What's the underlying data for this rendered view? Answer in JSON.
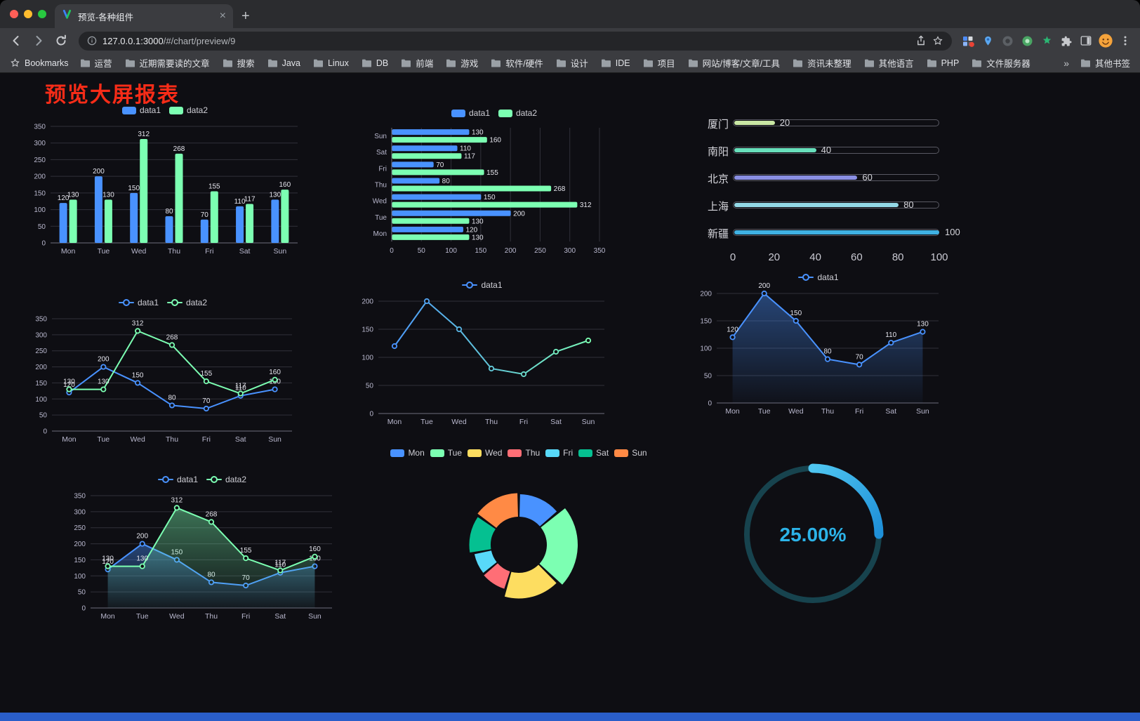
{
  "browser": {
    "tab_title": "预览-各种组件",
    "url_host": "127.0.0.1:3000",
    "url_path": "/#/chart/preview/9",
    "bookmarks_label": "Bookmarks",
    "bookmarks": [
      "运营",
      "近期需要读的文章",
      "搜索",
      "Java",
      "Linux",
      "DB",
      "前端",
      "游戏",
      "软件/硬件",
      "设计",
      "IDE",
      "项目",
      "网站/博客/文章/工具",
      "资讯未整理",
      "其他语言",
      "PHP",
      "文件服务器"
    ],
    "bookmarks_overflow": "»",
    "other_bookmarks": "其他书签"
  },
  "page": {
    "title": "预览大屏报表",
    "title_color": "#f72c18",
    "background": "#0e0e13",
    "footer_color": "#2a5ec9"
  },
  "chart_data": [
    {
      "type": "bar",
      "categories": [
        "Mon",
        "Tue",
        "Wed",
        "Thu",
        "Fri",
        "Sat",
        "Sun"
      ],
      "series": [
        {
          "name": "data1",
          "color": "#4992ff",
          "values": [
            120,
            200,
            150,
            80,
            70,
            110,
            130
          ]
        },
        {
          "name": "data2",
          "color": "#7cffb2",
          "values": [
            130,
            130,
            312,
            268,
            155,
            117,
            160
          ]
        }
      ],
      "ylim": [
        0,
        350
      ],
      "ytick": 50,
      "labels": true
    },
    {
      "type": "hbar",
      "categories": [
        "Mon",
        "Tue",
        "Wed",
        "Thu",
        "Fri",
        "Sat",
        "Sun"
      ],
      "series": [
        {
          "name": "data1",
          "color": "#4992ff",
          "values": [
            120,
            200,
            150,
            80,
            70,
            110,
            130
          ]
        },
        {
          "name": "data2",
          "color": "#7cffb2",
          "values": [
            130,
            130,
            312,
            268,
            155,
            117,
            160
          ]
        }
      ],
      "xlim": [
        0,
        350
      ],
      "xtick": 50,
      "labels": true
    },
    {
      "type": "progress",
      "items": [
        {
          "label": "厦门",
          "value": 20,
          "color": "#c9e7a4"
        },
        {
          "label": "南阳",
          "value": 40,
          "color": "#68e0bc"
        },
        {
          "label": "北京",
          "value": 60,
          "color": "#8a8fe3"
        },
        {
          "label": "上海",
          "value": 80,
          "color": "#93d8e6"
        },
        {
          "label": "新疆",
          "value": 100,
          "color": "#3fb1e3"
        }
      ],
      "ticks": [
        0,
        20,
        40,
        60,
        80,
        100
      ],
      "max": 100
    },
    {
      "type": "line",
      "categories": [
        "Mon",
        "Tue",
        "Wed",
        "Thu",
        "Fri",
        "Sat",
        "Sun"
      ],
      "series": [
        {
          "name": "data1",
          "color": "#4992ff",
          "values": [
            120,
            200,
            150,
            80,
            70,
            110,
            130
          ]
        },
        {
          "name": "data2",
          "color": "#7cffb2",
          "values": [
            130,
            130,
            312,
            268,
            155,
            117,
            160
          ]
        }
      ],
      "ylim": [
        0,
        350
      ],
      "ytick": 50,
      "labels": true
    },
    {
      "type": "line",
      "categories": [
        "Mon",
        "Tue",
        "Wed",
        "Thu",
        "Fri",
        "Sat",
        "Sun"
      ],
      "series": [
        {
          "name": "data1",
          "gradient": [
            "#4992ff",
            "#7cffb2"
          ],
          "values": [
            120,
            200,
            150,
            80,
            70,
            110,
            130
          ]
        }
      ],
      "ylim": [
        0,
        200
      ],
      "ytick": 50,
      "labels": false
    },
    {
      "type": "line",
      "categories": [
        "Mon",
        "Tue",
        "Wed",
        "Thu",
        "Fri",
        "Sat",
        "Sun"
      ],
      "series": [
        {
          "name": "data1",
          "color": "#4992ff",
          "area": true,
          "values": [
            120,
            200,
            150,
            80,
            70,
            110,
            130
          ]
        }
      ],
      "ylim": [
        0,
        200
      ],
      "ytick": 50,
      "labels": true
    },
    {
      "type": "line",
      "categories": [
        "Mon",
        "Tue",
        "Wed",
        "Thu",
        "Fri",
        "Sat",
        "Sun"
      ],
      "series": [
        {
          "name": "data1",
          "color": "#4992ff",
          "area": true,
          "values": [
            120,
            200,
            150,
            80,
            70,
            110,
            130
          ]
        },
        {
          "name": "data2",
          "color": "#7cffb2",
          "area": true,
          "values": [
            130,
            130,
            312,
            268,
            155,
            117,
            160
          ]
        }
      ],
      "ylim": [
        0,
        350
      ],
      "ytick": 50,
      "labels": true
    },
    {
      "type": "donut",
      "legend": [
        "Mon",
        "Tue",
        "Wed",
        "Thu",
        "Fri",
        "Sat",
        "Sun"
      ],
      "values": [
        120,
        200,
        150,
        80,
        70,
        110,
        130
      ],
      "colors": [
        "#4992ff",
        "#7cffb2",
        "#fddd60",
        "#ff6e76",
        "#58d9f9",
        "#05c091",
        "#ff8a45"
      ]
    },
    {
      "type": "gauge",
      "value_text": "25.00%",
      "percent": 25,
      "track_color": "#17434e",
      "arc_colors": [
        "#4fc6f1",
        "#1e8fd8"
      ],
      "text_color": "#2cb3e8"
    }
  ]
}
